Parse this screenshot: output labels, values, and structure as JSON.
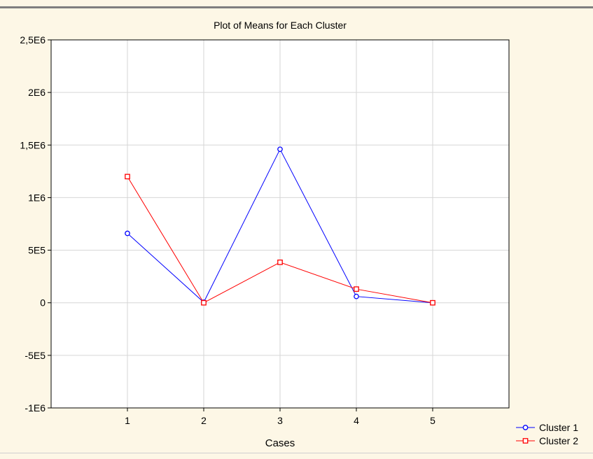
{
  "chart_data": {
    "type": "line",
    "title": "Plot of Means for Each Cluster",
    "xlabel": "Cases",
    "ylabel": "",
    "categories": [
      "1",
      "2",
      "3",
      "4",
      "5"
    ],
    "x": [
      1,
      2,
      3,
      4,
      5
    ],
    "xlim": [
      0,
      6
    ],
    "ylim": [
      -1000000,
      2500000
    ],
    "yticks": [
      -1000000,
      -500000,
      0,
      500000,
      1000000,
      1500000,
      2000000,
      2500000
    ],
    "ytick_labels": [
      "-1E6",
      "-5E5",
      "0",
      "5E5",
      "1E6",
      "1,5E6",
      "2E6",
      "2,5E6"
    ],
    "grid": true,
    "legend_position": "bottom-right, outside plot",
    "series": [
      {
        "name": "Cluster  1",
        "values": [
          660000,
          5000,
          1460000,
          60000,
          0
        ],
        "color": "#0000ff",
        "marker": "circle"
      },
      {
        "name": "Cluster  2",
        "values": [
          1200000,
          0,
          385000,
          130000,
          0
        ],
        "color": "#ff0000",
        "marker": "square"
      }
    ]
  }
}
